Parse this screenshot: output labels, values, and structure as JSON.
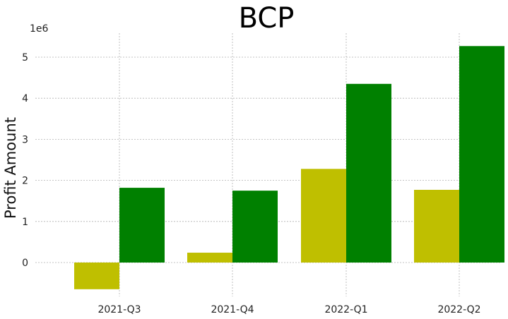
{
  "chart_data": {
    "type": "bar",
    "title": "BCP",
    "xlabel": "",
    "ylabel": "Profit Amount",
    "y_offset_label": "1e6",
    "categories": [
      "2021-Q3",
      "2021-Q4",
      "2022-Q1",
      "2022-Q2"
    ],
    "series": [
      {
        "color": "#bfbf00",
        "values": [
          -650000,
          240000,
          2280000,
          1770000
        ]
      },
      {
        "color": "#008000",
        "values": [
          1820000,
          1750000,
          4350000,
          5270000
        ]
      }
    ],
    "ylim": [
      -650000,
      5530000
    ],
    "yticks": [
      0,
      1000000,
      2000000,
      3000000,
      4000000,
      5000000
    ],
    "ytick_labels": [
      "0",
      "1",
      "2",
      "3",
      "4",
      "5"
    ],
    "grid": true,
    "legend": "none"
  }
}
